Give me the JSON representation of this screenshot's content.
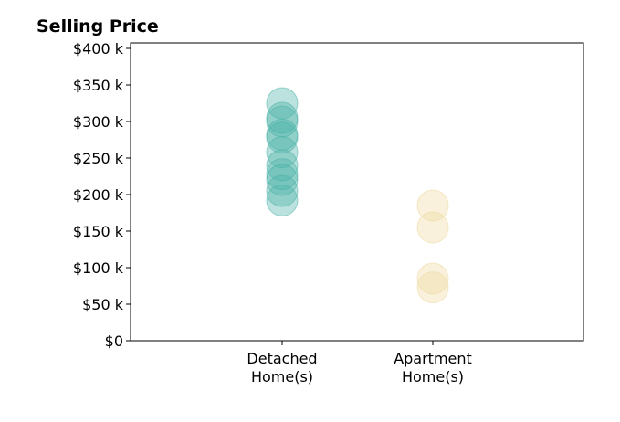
{
  "chart_data": {
    "type": "scatter",
    "title": "Selling Price",
    "xlabel": "",
    "ylabel": "",
    "categories": [
      {
        "key": "detached",
        "lines": [
          "Detached",
          "Home(s)"
        ]
      },
      {
        "key": "apartment",
        "lines": [
          "Apartment",
          "Home(s)"
        ]
      }
    ],
    "series": [
      {
        "category": "detached",
        "color": "#4db3a8",
        "values": [
          325000,
          305000,
          300000,
          282000,
          278000,
          258000,
          240000,
          228000,
          220000,
          205000,
          192000
        ]
      },
      {
        "category": "apartment",
        "color": "#efd9a0",
        "values": [
          185000,
          155000,
          85000,
          73000
        ]
      }
    ],
    "ylim": [
      0,
      400000
    ],
    "yticks": [
      {
        "value": 0,
        "label": "$0"
      },
      {
        "value": 50000,
        "label": "$50 k"
      },
      {
        "value": 100000,
        "label": "$100 k"
      },
      {
        "value": 150000,
        "label": "$150 k"
      },
      {
        "value": 200000,
        "label": "$200 k"
      },
      {
        "value": 250000,
        "label": "$250 k"
      },
      {
        "value": 300000,
        "label": "$300 k"
      },
      {
        "value": 350000,
        "label": "$350 k"
      },
      {
        "value": 400000,
        "label": "$400 k"
      }
    ],
    "grid": false,
    "legend": "none"
  }
}
